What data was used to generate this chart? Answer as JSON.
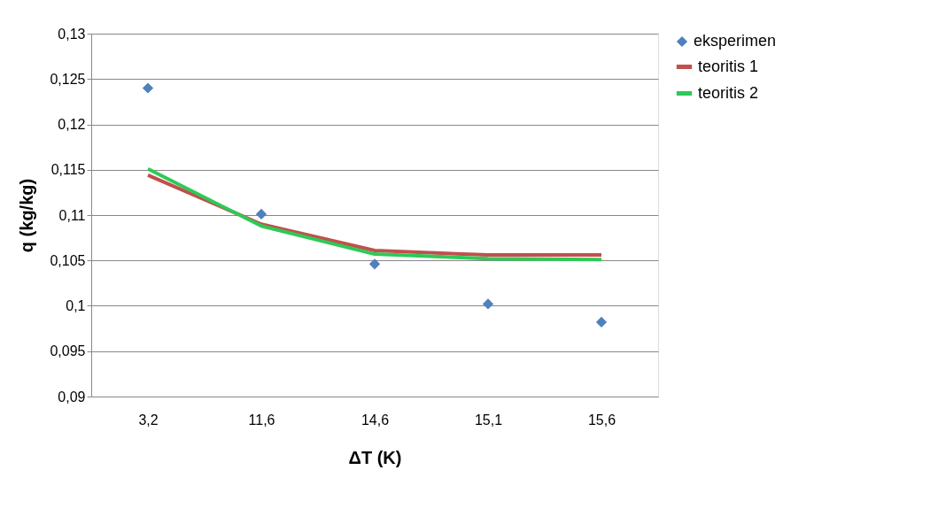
{
  "chart_data": {
    "type": "line",
    "xlabel": "ΔT (K)",
    "ylabel": "q (kg/kg)",
    "categories": [
      "3,2",
      "11,6",
      "14,6",
      "15,1",
      "15,6"
    ],
    "series": [
      {
        "name": "eksperimen",
        "type": "scatter",
        "marker": "diamond",
        "color": "#4f81bd",
        "values": [
          0.124,
          0.1101,
          0.1046,
          0.1002,
          0.0982
        ]
      },
      {
        "name": "teoritis 1",
        "color": "#c0504d",
        "values": [
          0.1144,
          0.109,
          0.1061,
          0.1056,
          0.1056
        ]
      },
      {
        "name": "teoritis 2",
        "color": "#2ec957",
        "values": [
          0.1151,
          0.1088,
          0.1057,
          0.1052,
          0.1051
        ]
      }
    ],
    "ylim": [
      0.09,
      0.13
    ],
    "yticks": [
      {
        "value": 0.09,
        "label": "0,09"
      },
      {
        "value": 0.095,
        "label": "0,095"
      },
      {
        "value": 0.1,
        "label": "0,1"
      },
      {
        "value": 0.105,
        "label": "0,105"
      },
      {
        "value": 0.11,
        "label": "0,11"
      },
      {
        "value": 0.115,
        "label": "0,115"
      },
      {
        "value": 0.12,
        "label": "0,12"
      },
      {
        "value": 0.125,
        "label": "0,125"
      },
      {
        "value": 0.13,
        "label": "0,13"
      }
    ],
    "grid": "y",
    "legend": "right",
    "line_style": "solid"
  }
}
